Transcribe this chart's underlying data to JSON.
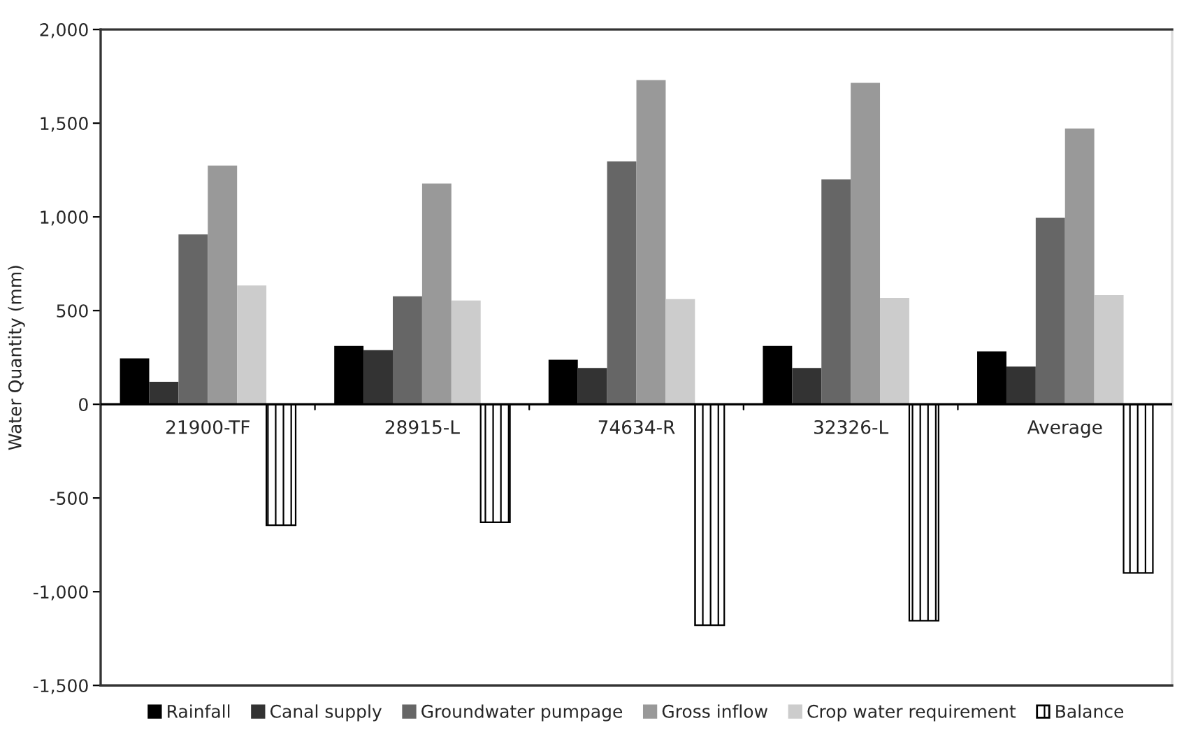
{
  "chart_data": {
    "type": "bar",
    "ylabel": "Water Quantity (mm)",
    "categories": [
      "21900-TF",
      "28915-L",
      "74634-R",
      "32326-L",
      "Average"
    ],
    "series": [
      {
        "name": "Rainfall",
        "color": "#000000",
        "values": [
          245,
          311,
          238,
          311,
          282
        ]
      },
      {
        "name": "Canal supply",
        "color": "#333333",
        "values": [
          120,
          289,
          194,
          194,
          201
        ]
      },
      {
        "name": "Groundwater pumpage",
        "color": "#666666",
        "values": [
          906,
          576,
          1296,
          1200,
          995
        ]
      },
      {
        "name": "Gross inflow",
        "color": "#999999",
        "values": [
          1274,
          1178,
          1730,
          1715,
          1472
        ]
      },
      {
        "name": "Crop water requirement",
        "color": "#cccccc",
        "values": [
          634,
          554,
          561,
          568,
          583
        ]
      },
      {
        "name": "Balance",
        "color": "#000000",
        "values": [
          -645,
          -629,
          -1179,
          -1155,
          -900
        ]
      }
    ],
    "ylim": [
      -1500,
      2000
    ],
    "yticks": [
      {
        "value": -1500,
        "label": "-1,500"
      },
      {
        "value": -1000,
        "label": "-1,000"
      },
      {
        "value": -500,
        "label": "-500"
      },
      0,
      500,
      {
        "value": 1000,
        "label": "1,000"
      },
      {
        "value": 1500,
        "label": "1,500"
      },
      {
        "value": 2000,
        "label": "2,000"
      }
    ],
    "grid": false,
    "legend": "bottom"
  }
}
